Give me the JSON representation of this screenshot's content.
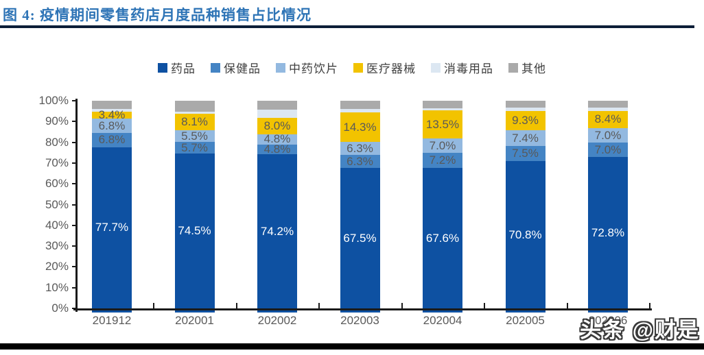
{
  "figure": {
    "title": "图 4: 疫情期间零售药店月度品种销售占比情况",
    "watermark": "头条 @财是"
  },
  "chart_data": {
    "type": "bar",
    "stacked": true,
    "unit": "%",
    "title": "疫情期间零售药店月度品种销售占比情况",
    "categories": [
      "201912",
      "202001",
      "202002",
      "202003",
      "202004",
      "202005",
      "202006"
    ],
    "series": [
      {
        "name": "药品",
        "color": "#0E51A2",
        "show_labels": true,
        "label_color": "#FFFFFF",
        "values": [
          77.7,
          74.5,
          74.2,
          67.5,
          67.6,
          70.8,
          72.8
        ]
      },
      {
        "name": "保健品",
        "color": "#4484C4",
        "show_labels": true,
        "label_color": "#595959",
        "values": [
          6.8,
          5.7,
          4.8,
          6.3,
          7.2,
          7.5,
          7.0
        ]
      },
      {
        "name": "中药饮片",
        "color": "#93B9E0",
        "show_labels": true,
        "label_color": "#595959",
        "values": [
          6.8,
          5.5,
          4.8,
          6.3,
          7.0,
          7.4,
          7.0
        ]
      },
      {
        "name": "医疗器械",
        "color": "#F2C300",
        "show_labels": true,
        "label_color": "#595959",
        "values": [
          3.4,
          8.1,
          8.0,
          14.3,
          13.5,
          9.3,
          8.4
        ]
      },
      {
        "name": "消毒用品",
        "color": "#DCE7F2",
        "show_labels": false,
        "label_color": "#595959",
        "values": [
          1.2,
          1.0,
          3.8,
          1.7,
          1.2,
          1.6,
          1.5
        ]
      },
      {
        "name": "其他",
        "color": "#AAAAAA",
        "show_labels": false,
        "label_color": "#595959",
        "values": [
          4.1,
          5.2,
          4.4,
          3.9,
          3.5,
          3.4,
          3.3
        ]
      }
    ],
    "y_axis": {
      "min": 0,
      "max": 100,
      "tick_labels": [
        "0%",
        "10%",
        "20%",
        "30%",
        "40%",
        "50%",
        "60%",
        "70%",
        "80%",
        "90%",
        "100%"
      ]
    },
    "legend": [
      "药品",
      "保健品",
      "中药饮片",
      "医疗器械",
      "消毒用品",
      "其他"
    ],
    "legend_position": "top",
    "grid": false,
    "colors": {
      "title_blue": "#2E74B6",
      "title_rule": "#0c1e38",
      "axis": "#1a1a1a",
      "tick_label": "#595959"
    }
  }
}
